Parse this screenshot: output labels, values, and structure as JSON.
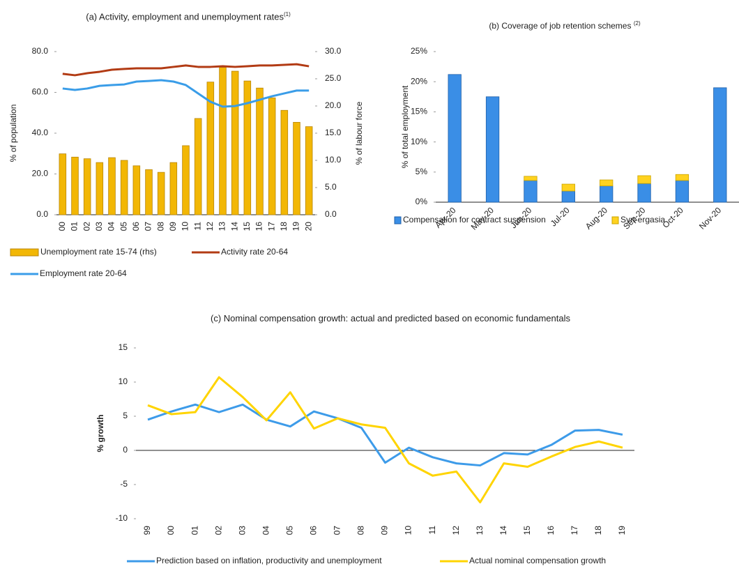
{
  "chart_data": [
    {
      "type": "combo",
      "title": "(a) Activity, employment and unemployment rates",
      "title_note": "(1)",
      "ylabel": "% of population",
      "y2label": "% of labour force",
      "categories": [
        "00",
        "01",
        "02",
        "03",
        "04",
        "05",
        "06",
        "07",
        "08",
        "09",
        "10",
        "11",
        "12",
        "13",
        "14",
        "15",
        "16",
        "17",
        "18",
        "19",
        "20"
      ],
      "ylim": [
        0,
        80
      ],
      "yticks": [
        {
          "value": 0,
          "label": "0.0"
        },
        {
          "value": 20,
          "label": "20.0"
        },
        {
          "value": 40,
          "label": "40.0"
        },
        {
          "value": 60,
          "label": "60.0"
        },
        {
          "value": 80,
          "label": "80.0"
        }
      ],
      "y2lim": [
        0,
        30
      ],
      "y2ticks": [
        {
          "value": 0,
          "label": "0.0"
        },
        {
          "value": 5,
          "label": "5.0"
        },
        {
          "value": 10,
          "label": "10.0"
        },
        {
          "value": 15,
          "label": "15.0"
        },
        {
          "value": 20,
          "label": "20.0"
        },
        {
          "value": 25,
          "label": "25.0"
        },
        {
          "value": 30,
          "label": "30.0"
        }
      ],
      "series": [
        {
          "name": "Unemployment rate 15-74 (rhs)",
          "type": "bar",
          "axis": "y2",
          "color": "#f2b705",
          "values": [
            11.2,
            10.6,
            10.3,
            9.6,
            10.5,
            10.0,
            9.0,
            8.3,
            7.8,
            9.6,
            12.7,
            17.7,
            24.4,
            27.1,
            26.4,
            24.6,
            23.3,
            21.5,
            19.2,
            17.0,
            16.2
          ]
        },
        {
          "name": "Activity rate 20-64",
          "type": "line",
          "color": "#b23b14",
          "values": [
            69.1,
            68.4,
            69.4,
            70.1,
            71.1,
            71.5,
            71.8,
            71.8,
            71.8,
            72.5,
            73.2,
            72.5,
            72.5,
            72.8,
            72.5,
            72.8,
            73.2,
            73.2,
            73.5,
            73.8,
            72.8
          ]
        },
        {
          "name": "Employment rate 20-64",
          "type": "line",
          "color": "#3a9de8",
          "values": [
            61.9,
            61.2,
            61.9,
            63.2,
            63.6,
            63.9,
            65.3,
            65.6,
            66.0,
            65.3,
            63.6,
            59.5,
            55.4,
            53.0,
            53.3,
            54.7,
            56.4,
            58.1,
            59.5,
            60.9,
            60.9
          ]
        }
      ]
    },
    {
      "type": "bar",
      "stacked": true,
      "title": "(b) Coverage of job retention schemes",
      "title_note": "(2)",
      "ylabel": "% of total employment",
      "categories": [
        "Apr-20",
        "May-20",
        "Jun-20",
        "Jul-20",
        "Aug-20",
        "Sep-20",
        "Oct-20",
        "Nov-20"
      ],
      "ylim": [
        0,
        25
      ],
      "yticks": [
        {
          "value": 0,
          "label": "0%"
        },
        {
          "value": 5,
          "label": "5%"
        },
        {
          "value": 10,
          "label": "10%"
        },
        {
          "value": 15,
          "label": "15%"
        },
        {
          "value": 20,
          "label": "20%"
        },
        {
          "value": 25,
          "label": "25%"
        }
      ],
      "series": [
        {
          "name": "Compensation for contract suspension",
          "color": "#3a8ee6",
          "values": [
            21.2,
            17.5,
            3.6,
            1.85,
            2.7,
            3.1,
            3.6,
            19.0
          ]
        },
        {
          "name": "Syn-ergasia",
          "color": "#ffd21f",
          "values": [
            0,
            0,
            0.7,
            1.15,
            1.0,
            1.3,
            1.0,
            0
          ]
        }
      ]
    },
    {
      "type": "line",
      "title": "(c) Nominal compensation growth: actual and predicted based on economic fundamentals",
      "ylabel": "% growth",
      "categories": [
        "99",
        "00",
        "01",
        "02",
        "03",
        "04",
        "05",
        "06",
        "07",
        "08",
        "09",
        "10",
        "11",
        "12",
        "13",
        "14",
        "15",
        "16",
        "17",
        "18",
        "19"
      ],
      "ylim": [
        -10,
        15
      ],
      "yticks": [
        -10,
        -5,
        0,
        5,
        10,
        15
      ],
      "series": [
        {
          "name": "Prediction based on inflation, productivity and unemployment",
          "color": "#3d9be9",
          "values": [
            4.5,
            5.7,
            6.7,
            5.6,
            6.7,
            4.5,
            3.5,
            5.7,
            4.7,
            3.3,
            -1.8,
            0.4,
            -1.0,
            -1.9,
            -2.2,
            -0.4,
            -0.6,
            0.8,
            2.9,
            3.0,
            2.3
          ]
        },
        {
          "name": "Actual nominal compensation growth",
          "color": "#ffd400",
          "values": [
            6.6,
            5.3,
            5.6,
            10.7,
            7.8,
            4.4,
            8.5,
            3.2,
            4.7,
            3.8,
            3.3,
            -1.9,
            -3.7,
            -3.1,
            -7.6,
            -1.9,
            -2.4,
            -0.9,
            0.5,
            1.3,
            0.4
          ]
        }
      ]
    }
  ]
}
